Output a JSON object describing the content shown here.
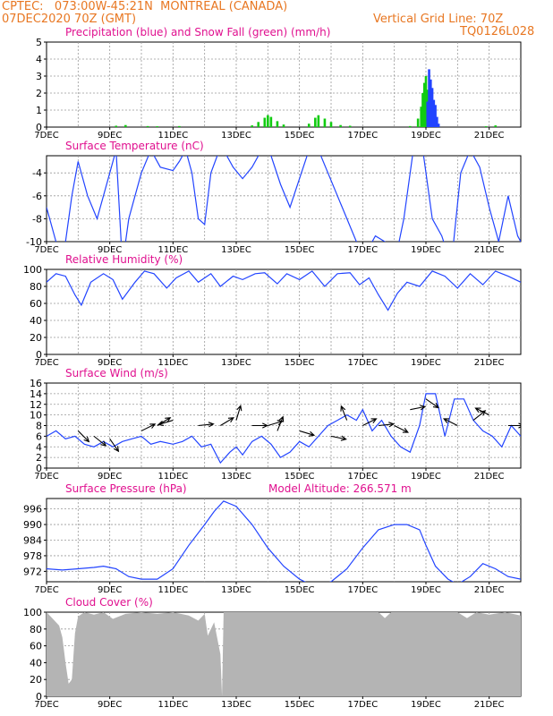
{
  "header": {
    "line1": "CPTEC:   073:00W-45:21N  MONTREAL (CANADA)",
    "line2": "07DEC2020 70Z (GMT)",
    "grid_note": "Vertical Grid Line: 70Z",
    "code": "TQ0126L028"
  },
  "x_ticks": [
    "7DEC",
    "9DEC",
    "11DEC",
    "13DEC",
    "15DEC",
    "17DEC",
    "19DEC",
    "21DEC"
  ],
  "panels": {
    "precip": {
      "title": "Precipitation (blue) and Snow Fall (green) (mm/h)"
    },
    "temp": {
      "title": "Surface Temperature (nC)"
    },
    "rh": {
      "title": "Relative Humidity (%)"
    },
    "wind": {
      "title": "Surface Wind (m/s)"
    },
    "pres": {
      "title": "Surface Pressure (hPa)",
      "extra": "Model Altitude: 266.571 m"
    },
    "cloud": {
      "title": "Cloud Cover (%)"
    }
  },
  "colors": {
    "header": "#e87722",
    "title": "#e0108f",
    "line": "#2244ff",
    "snow": "#11cc11",
    "precip": "#2244ff",
    "cloud": "#b4b4b4"
  },
  "chart_data": [
    {
      "id": "precip",
      "type": "bar",
      "ylim": [
        0,
        5
      ],
      "yticks": [
        0,
        1,
        2,
        3,
        4,
        5
      ],
      "x_unit": "day offset from 7DEC 00Z",
      "series": [
        {
          "name": "Snow Fall",
          "color": "#11cc11",
          "x": [
            2.2,
            2.5,
            3.2,
            3.5,
            4.2,
            6.5,
            6.7,
            6.9,
            7.0,
            7.1,
            7.3,
            7.5,
            8.3,
            8.5,
            8.6,
            8.8,
            9.0,
            9.3,
            9.6,
            11.5,
            11.75,
            11.85,
            11.9,
            11.95,
            12.0,
            12.05,
            12.1,
            12.2,
            13.9,
            14.2
          ],
          "values": [
            0.08,
            0.12,
            0.06,
            0.05,
            0.06,
            0.1,
            0.3,
            0.55,
            0.7,
            0.6,
            0.35,
            0.15,
            0.2,
            0.55,
            0.7,
            0.5,
            0.3,
            0.12,
            0.08,
            0.06,
            0.5,
            1.2,
            2.0,
            2.6,
            3.0,
            2.2,
            1.2,
            0.4,
            0.05,
            0.1
          ]
        },
        {
          "name": "Precipitation",
          "color": "#2244ff",
          "x": [
            12.05,
            12.1,
            12.15,
            12.2,
            12.25,
            12.3,
            12.35,
            12.4
          ],
          "values": [
            1.5,
            3.4,
            2.8,
            2.3,
            1.6,
            1.3,
            0.6,
            0.2
          ]
        }
      ]
    },
    {
      "id": "temp",
      "type": "line",
      "ylim": [
        -10,
        -2.5
      ],
      "yticks": [
        -10,
        -8,
        -6,
        -4
      ],
      "clip": true,
      "x": [
        0,
        0.25,
        0.5,
        0.8,
        1.0,
        1.3,
        1.6,
        2.0,
        2.2,
        2.4,
        2.6,
        2.8,
        3.0,
        3.3,
        3.6,
        4.0,
        4.2,
        4.4,
        4.6,
        4.8,
        5.0,
        5.2,
        5.4,
        5.6,
        5.9,
        6.2,
        6.5,
        6.8,
        7.1,
        7.4,
        7.7,
        8.0,
        8.3,
        8.6,
        8.9,
        9.2,
        9.5,
        9.8,
        10.1,
        10.4,
        10.7,
        11.0,
        11.3,
        11.6,
        11.9,
        12.2,
        12.5,
        12.8,
        13.1,
        13.4,
        13.7,
        14.0,
        14.3,
        14.6,
        14.9,
        15.0
      ],
      "values": [
        -7,
        -9.5,
        -12,
        -6,
        -3,
        -6,
        -8,
        -4,
        -2,
        -12,
        -8,
        -6,
        -4,
        -2,
        -3.5,
        -3.8,
        -3,
        -2,
        -4,
        -8,
        -8.5,
        -4,
        -2.5,
        -2,
        -3.5,
        -4.5,
        -3.5,
        -2,
        -2.5,
        -5,
        -7,
        -4.5,
        -2,
        -2,
        -4,
        -6,
        -8,
        -10,
        -11,
        -9.5,
        -10,
        -12,
        -8,
        -2,
        -2,
        -8,
        -9.5,
        -12,
        -4,
        -2,
        -3.5,
        -7,
        -10,
        -6,
        -9.5,
        -10
      ]
    },
    {
      "id": "rh",
      "type": "line",
      "ylim": [
        0,
        100
      ],
      "yticks": [
        0,
        20,
        40,
        60,
        80,
        100
      ],
      "x": [
        0,
        0.3,
        0.6,
        0.9,
        1.1,
        1.4,
        1.8,
        2.1,
        2.4,
        2.8,
        3.1,
        3.4,
        3.8,
        4.1,
        4.5,
        4.8,
        5.2,
        5.5,
        5.9,
        6.2,
        6.6,
        6.9,
        7.3,
        7.6,
        8.0,
        8.4,
        8.8,
        9.2,
        9.6,
        9.9,
        10.2,
        10.5,
        10.8,
        11.1,
        11.4,
        11.8,
        12.2,
        12.6,
        13.0,
        13.4,
        13.8,
        14.2,
        14.6,
        15.0
      ],
      "values": [
        85,
        95,
        92,
        70,
        58,
        85,
        95,
        88,
        65,
        85,
        98,
        95,
        78,
        90,
        98,
        85,
        95,
        80,
        92,
        88,
        95,
        96,
        83,
        95,
        88,
        98,
        80,
        95,
        96,
        82,
        90,
        70,
        52,
        72,
        85,
        80,
        98,
        92,
        78,
        95,
        82,
        98,
        92,
        85
      ]
    },
    {
      "id": "wind",
      "type": "line",
      "ylim": [
        0,
        16
      ],
      "yticks": [
        0,
        2,
        4,
        6,
        8,
        10,
        12,
        14,
        16
      ],
      "x": [
        0,
        0.3,
        0.6,
        0.9,
        1.2,
        1.5,
        1.8,
        2.1,
        2.4,
        2.7,
        3.0,
        3.3,
        3.6,
        4.0,
        4.3,
        4.6,
        4.9,
        5.2,
        5.5,
        5.8,
        6.0,
        6.2,
        6.5,
        6.8,
        7.1,
        7.4,
        7.7,
        8.0,
        8.3,
        8.6,
        8.9,
        9.2,
        9.5,
        9.8,
        10.0,
        10.3,
        10.6,
        10.9,
        11.2,
        11.5,
        11.8,
        12.0,
        12.3,
        12.6,
        12.9,
        13.2,
        13.5,
        13.8,
        14.1,
        14.4,
        14.7,
        15.0
      ],
      "values": [
        6,
        7,
        5.5,
        6,
        4.5,
        4,
        5,
        4,
        5,
        5.5,
        6,
        4.5,
        5,
        4.5,
        5,
        6,
        4,
        4.5,
        1,
        3,
        4,
        2.5,
        5,
        6,
        4.5,
        2,
        3,
        5,
        4,
        6,
        8,
        9,
        10,
        9,
        11,
        7,
        9,
        6,
        4,
        3,
        8,
        14,
        14,
        6,
        13,
        13,
        9,
        7,
        6,
        4,
        8,
        6
      ],
      "arrows": [
        {
          "x": 1.0,
          "y": 7,
          "u": 1,
          "v": -1
        },
        {
          "x": 1.5,
          "y": 6,
          "u": 1,
          "v": -0.8
        },
        {
          "x": 2.0,
          "y": 5.5,
          "u": 0.7,
          "v": -1
        },
        {
          "x": 3.0,
          "y": 7,
          "u": 1,
          "v": 0.5
        },
        {
          "x": 3.5,
          "y": 8,
          "u": 1,
          "v": 0.6
        },
        {
          "x": 4.0,
          "y": 9,
          "u": -1,
          "v": -0.3
        },
        {
          "x": 4.8,
          "y": 8,
          "u": 1,
          "v": 0.1
        },
        {
          "x": 5.5,
          "y": 8,
          "u": 1,
          "v": 0.6
        },
        {
          "x": 6.0,
          "y": 9,
          "u": 0.3,
          "v": 1
        },
        {
          "x": 6.5,
          "y": 8,
          "u": 1,
          "v": 0
        },
        {
          "x": 7.0,
          "y": 8,
          "u": 1,
          "v": 0.3
        },
        {
          "x": 7.3,
          "y": 7,
          "u": 0.4,
          "v": 1
        },
        {
          "x": 8.0,
          "y": 7,
          "u": 1,
          "v": -0.3
        },
        {
          "x": 9.0,
          "y": 6,
          "u": 1,
          "v": -0.2
        },
        {
          "x": 9.5,
          "y": 9,
          "u": -0.4,
          "v": 1
        },
        {
          "x": 10.0,
          "y": 8,
          "u": 1,
          "v": 0.5
        },
        {
          "x": 10.5,
          "y": 8,
          "u": 1,
          "v": 0.1
        },
        {
          "x": 11.0,
          "y": 8,
          "u": 1,
          "v": -0.5
        },
        {
          "x": 11.5,
          "y": 11,
          "u": 1,
          "v": 0.2
        },
        {
          "x": 12.0,
          "y": 13,
          "u": 1,
          "v": -0.7
        },
        {
          "x": 13.0,
          "y": 8,
          "u": -1,
          "v": 0.5
        },
        {
          "x": 13.5,
          "y": 9,
          "u": 1,
          "v": 0.8
        },
        {
          "x": 14.0,
          "y": 10,
          "u": -1,
          "v": 0.5
        },
        {
          "x": 14.6,
          "y": 8,
          "u": 1,
          "v": 0
        }
      ]
    },
    {
      "id": "pres",
      "type": "line",
      "ylim": [
        968,
        1000
      ],
      "yticks": [
        972,
        978,
        984,
        990,
        996
      ],
      "clip": true,
      "x": [
        0,
        0.5,
        1.0,
        1.5,
        1.8,
        2.2,
        2.6,
        3.0,
        3.5,
        4.0,
        4.5,
        5.0,
        5.3,
        5.6,
        6.0,
        6.5,
        7.0,
        7.5,
        8.0,
        8.5,
        9.0,
        9.5,
        10.0,
        10.5,
        11.0,
        11.4,
        11.8,
        12.0,
        12.3,
        12.7,
        13.0,
        13.4,
        13.8,
        14.2,
        14.6,
        15.0
      ],
      "values": [
        973,
        972.5,
        973,
        973.5,
        974,
        973,
        970,
        969,
        969,
        973,
        982,
        990,
        995,
        999,
        997,
        990,
        981,
        974,
        969,
        966,
        968,
        973,
        981,
        988,
        990,
        990,
        988,
        982,
        974,
        969,
        967,
        970,
        975,
        973,
        970,
        969
      ]
    },
    {
      "id": "cloud",
      "type": "area",
      "ylim": [
        0,
        100
      ],
      "yticks": [
        0,
        20,
        40,
        60,
        80,
        100
      ],
      "x": [
        0,
        0.2,
        0.4,
        0.5,
        0.6,
        0.7,
        0.8,
        0.9,
        1.0,
        1.2,
        1.5,
        1.8,
        2.1,
        2.5,
        3.0,
        3.5,
        4.0,
        4.5,
        4.8,
        5.0,
        5.1,
        5.3,
        5.5,
        5.55,
        5.6,
        5.7,
        5.9,
        6.3,
        7.0,
        8.0,
        9.0,
        10.0,
        10.5,
        10.7,
        10.9,
        11.5,
        12.0,
        12.5,
        13.0,
        13.3,
        13.6,
        14.0,
        14.5,
        15.0
      ],
      "values": [
        100,
        92,
        84,
        70,
        40,
        15,
        20,
        75,
        95,
        100,
        97,
        100,
        92,
        98,
        100,
        98,
        100,
        96,
        90,
        98,
        72,
        88,
        50,
        0,
        100,
        100,
        100,
        100,
        100,
        100,
        100,
        100,
        100,
        93,
        100,
        100,
        100,
        100,
        100,
        93,
        100,
        97,
        100,
        96
      ]
    }
  ]
}
